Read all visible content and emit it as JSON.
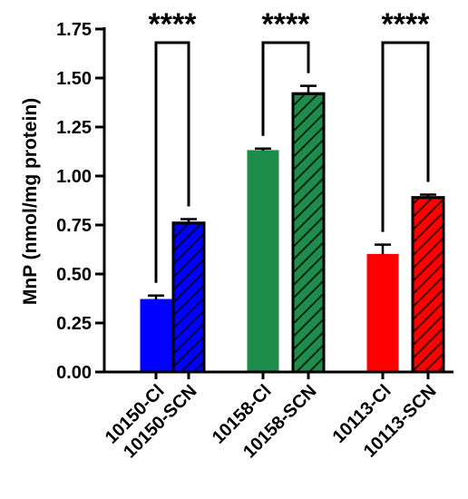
{
  "chart_data": {
    "type": "bar",
    "ylabel": "MnP (nmol/mg protein)",
    "xlabel": "",
    "ylim": [
      0,
      1.75
    ],
    "yticks": [
      0.0,
      0.25,
      0.5,
      0.75,
      1.0,
      1.25,
      1.5,
      1.75
    ],
    "ytick_labels": [
      "0.00",
      "0.25",
      "0.50",
      "0.75",
      "1.00",
      "1.25",
      "1.50",
      "1.75"
    ],
    "grid": false,
    "legend": "none",
    "categories": [
      "10150-Cl",
      "10150-SCN",
      "10158-Cl",
      "10158-SCN",
      "10113-Cl",
      "10113-SCN"
    ],
    "values": [
      0.37,
      0.76,
      1.13,
      1.42,
      0.6,
      0.89
    ],
    "errors": [
      0.02,
      0.02,
      0.01,
      0.04,
      0.05,
      0.015
    ],
    "colors": [
      "#0000ff",
      "#0000ff",
      "#1e8c4a",
      "#1e8c4a",
      "#ff0000",
      "#ff0000"
    ],
    "hatched": [
      false,
      true,
      false,
      true,
      false,
      true
    ],
    "significance": [
      {
        "pair": [
          0,
          1
        ],
        "label": "****"
      },
      {
        "pair": [
          2,
          3
        ],
        "label": "****"
      },
      {
        "pair": [
          4,
          5
        ],
        "label": "****"
      }
    ]
  }
}
